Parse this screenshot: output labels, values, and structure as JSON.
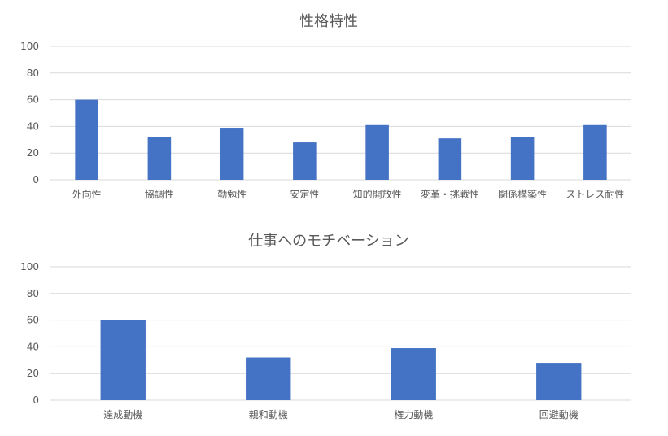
{
  "chart_data": [
    {
      "type": "bar",
      "title": "性格特性",
      "categories": [
        "外向性",
        "協調性",
        "勤勉性",
        "安定性",
        "知的開放性",
        "変革・挑戦性",
        "関係構築性",
        "ストレス耐性"
      ],
      "values": [
        60,
        32,
        39,
        28,
        41,
        31,
        32,
        41
      ],
      "ylim": [
        0,
        100
      ],
      "yticks": [
        0,
        20,
        40,
        60,
        80,
        100
      ],
      "grid": true,
      "color": "#4472c4"
    },
    {
      "type": "bar",
      "title": "仕事へのモチベーション",
      "categories": [
        "達成動機",
        "親和動機",
        "権力動機",
        "回避動機"
      ],
      "values": [
        60,
        32,
        39,
        28
      ],
      "ylim": [
        0,
        100
      ],
      "yticks": [
        0,
        20,
        40,
        60,
        80,
        100
      ],
      "grid": true,
      "color": "#4472c4"
    }
  ]
}
